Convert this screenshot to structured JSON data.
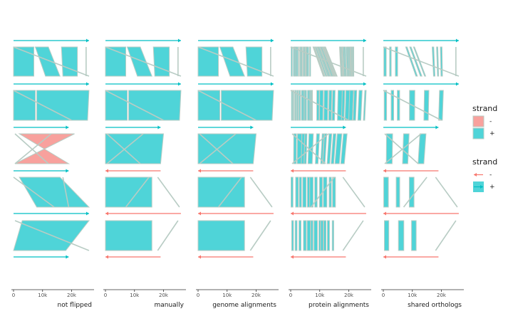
{
  "chart_data": {
    "type": "genome-synteny",
    "facets": [
      {
        "label": "not flipped",
        "flipped": false,
        "link_mode": "genome"
      },
      {
        "label": "manually",
        "flipped": true,
        "link_mode": "genome"
      },
      {
        "label": "genome alignments",
        "flipped": true,
        "link_mode": "genome"
      },
      {
        "label": "protein alignments",
        "flipped": true,
        "link_mode": "protein"
      },
      {
        "label": "shared orthologs",
        "flipped": true,
        "link_mode": "ortholog"
      }
    ],
    "x_ticks": [
      {
        "value": 0,
        "label": "0"
      },
      {
        "value": 10000,
        "label": "10k"
      },
      {
        "value": 20000,
        "label": "20k"
      }
    ],
    "xlim": [
      0,
      27000
    ],
    "genomes": [
      {
        "length": 26000,
        "strand_not_flipped": "+",
        "strand_flipped": "+"
      },
      {
        "length": 26000,
        "strand_not_flipped": "+",
        "strand_flipped": "+"
      },
      {
        "length": 19000,
        "strand_not_flipped": "+",
        "strand_flipped": "+"
      },
      {
        "length": 19000,
        "strand_not_flipped": "+",
        "strand_flipped": "-"
      },
      {
        "length": 26000,
        "strand_not_flipped": "+",
        "strand_flipped": "-"
      },
      {
        "length": 19000,
        "strand_not_flipped": "+",
        "strand_flipped": "-"
      }
    ],
    "links": [
      {
        "blocks_not_flipped": [
          {
            "a": [
              0,
              7000
            ],
            "b": [
              0,
              7000
            ],
            "strand": "+"
          },
          {
            "a": [
              7500,
              12000
            ],
            "b": [
              11000,
              16000
            ],
            "strand": "+"
          },
          {
            "a": [
              16500,
              22000
            ],
            "b": [
              17000,
              22000
            ],
            "strand": "+"
          }
        ],
        "blocks_flipped": [
          {
            "a": [
              0,
              7000
            ],
            "b": [
              0,
              7000
            ],
            "strand": "+"
          },
          {
            "a": [
              7500,
              12000
            ],
            "b": [
              11000,
              16000
            ],
            "strand": "+"
          },
          {
            "a": [
              16500,
              22000
            ],
            "b": [
              17000,
              22000
            ],
            "strand": "+"
          }
        ],
        "thin_not_flipped": [
          [
            0,
            26000
          ],
          [
            25000,
            25000
          ]
        ],
        "thin_flipped": [
          [
            0,
            26000
          ],
          [
            25000,
            25000
          ]
        ]
      },
      {
        "blocks_not_flipped": [
          {
            "a": [
              0,
              7500
            ],
            "b": [
              0,
              7500
            ],
            "strand": "+"
          },
          {
            "a": [
              8000,
              26000
            ],
            "b": [
              8000,
              25500
            ],
            "strand": "+"
          }
        ],
        "blocks_flipped": [
          {
            "a": [
              0,
              7500
            ],
            "b": [
              0,
              7500
            ],
            "strand": "+"
          },
          {
            "a": [
              8000,
              26000
            ],
            "b": [
              8000,
              25500
            ],
            "strand": "+"
          }
        ],
        "thin_not_flipped": [
          [
            0,
            20000
          ]
        ],
        "thin_flipped": [
          [
            0,
            20000
          ]
        ]
      },
      {
        "blocks_not_flipped": [
          {
            "a": [
              2000,
              21000
            ],
            "b": [
              19000,
              500
            ],
            "strand": "-"
          }
        ],
        "blocks_flipped": [
          {
            "a": [
              0,
              20000
            ],
            "b": [
              0,
              19000
            ],
            "strand": "+"
          }
        ],
        "thin_not_flipped": [
          [
            500,
            12000
          ],
          [
            13000,
            500
          ]
        ],
        "thin_flipped": [
          [
            500,
            12000
          ],
          [
            13000,
            500
          ]
        ]
      },
      {
        "blocks_not_flipped": [
          {
            "a": [
              2000,
              16000
            ],
            "b": [
              8000,
              26000
            ],
            "strand": "+"
          }
        ],
        "blocks_flipped": [
          {
            "a": [
              0,
              16000
            ],
            "b": [
              0,
              16000
            ],
            "strand": "+"
          }
        ],
        "thin_not_flipped": [
          [
            17000,
            19000
          ],
          [
            0,
            14000
          ]
        ],
        "thin_flipped": [
          [
            18000,
            25500
          ],
          [
            15000,
            7000
          ]
        ]
      },
      {
        "blocks_not_flipped": [
          {
            "a": [
              3000,
              26000
            ],
            "b": [
              0,
              18000
            ],
            "strand": "+"
          }
        ],
        "blocks_flipped": [
          {
            "a": [
              0,
              16000
            ],
            "b": [
              0,
              16000
            ],
            "strand": "+"
          }
        ],
        "thin_not_flipped": [
          [
            500,
            26000
          ]
        ],
        "thin_flipped": [
          [
            25000,
            18000
          ]
        ]
      }
    ],
    "legends": [
      {
        "title": "strand",
        "entries": [
          {
            "label": "-",
            "color": "#f8a19d"
          },
          {
            "label": "+",
            "color": "#4fd4d8"
          }
        ]
      },
      {
        "title": "strand",
        "entries": [
          {
            "label": "-",
            "color": "#f8766d"
          },
          {
            "label": "+",
            "color": "#00bfc4"
          }
        ]
      }
    ],
    "colors": {
      "plus_fill": "#4fd4d8",
      "minus_fill": "#f8a19d",
      "plus_line": "#00bfc4",
      "minus_line": "#f8766d",
      "link_outline": "#b8ccc4"
    }
  }
}
